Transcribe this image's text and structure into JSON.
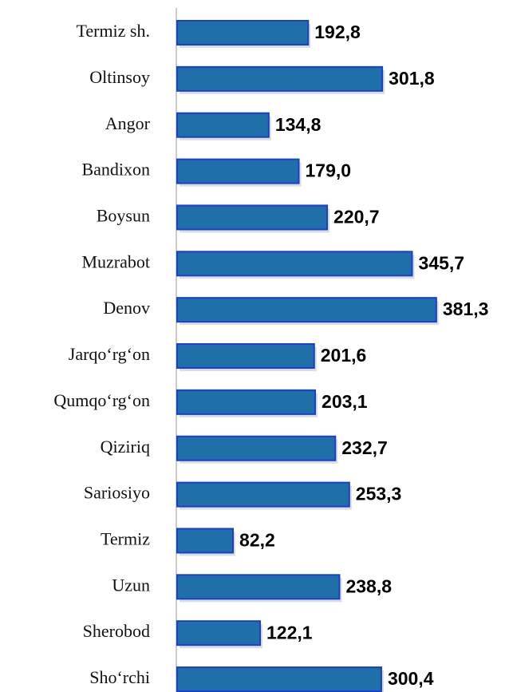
{
  "chart_data": {
    "type": "bar",
    "orientation": "horizontal",
    "categories": [
      "Termiz sh.",
      "Oltinsoy",
      "Angor",
      "Bandixon",
      "Boysun",
      "Muzrabot",
      "Denov",
      "Jarqo‘rg‘on",
      "Qumqo‘rg‘on",
      "Qiziriq",
      "Sariosiyo",
      "Termiz",
      "Uzun",
      "Sherobod",
      "Sho‘rchi"
    ],
    "values": [
      192.8,
      301.8,
      134.8,
      179.0,
      220.7,
      345.7,
      381.3,
      201.6,
      203.1,
      232.7,
      253.3,
      82.2,
      238.8,
      122.1,
      300.4
    ],
    "value_labels": [
      "192,8",
      "301,8",
      "134,8",
      "179,0",
      "220,7",
      "345,7",
      "381,3",
      "201,6",
      "203,1",
      "232,7",
      "253,3",
      "82,2",
      "238,8",
      "122,1",
      "300,4"
    ],
    "color": "#1f6fa8"
  }
}
